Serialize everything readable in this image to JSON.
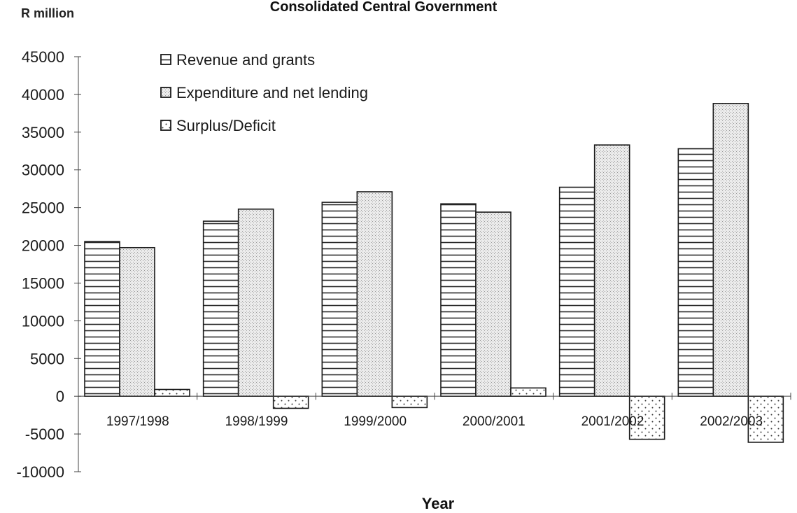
{
  "chart_data": {
    "type": "bar",
    "title": "Consolidated Central Government",
    "unit_label": "R million",
    "xlabel": "Year",
    "ylabel": "",
    "ylim": [
      -10000,
      45000
    ],
    "ytick_step": 5000,
    "yticks": [
      "45000",
      "40000",
      "35000",
      "30000",
      "25000",
      "20000",
      "15000",
      "10000",
      "5000",
      "0",
      "-5000",
      "-10000"
    ],
    "grid": false,
    "legend_position": "top-left",
    "categories": [
      "1997/1998",
      "1998/1999",
      "1999/2000",
      "2000/2001",
      "2001/2002",
      "2002/2003"
    ],
    "series": [
      {
        "name": "Revenue and grants",
        "pattern": "horizontal-lines",
        "values": [
          20500,
          23200,
          25700,
          25500,
          27700,
          32800
        ]
      },
      {
        "name": "Expenditure and net lending",
        "pattern": "crosshatch",
        "values": [
          19700,
          24800,
          27100,
          24400,
          33300,
          38800
        ]
      },
      {
        "name": "Surplus/Deficit",
        "pattern": "dots",
        "values": [
          900,
          -1600,
          -1500,
          1100,
          -5700,
          -6100
        ]
      }
    ]
  }
}
